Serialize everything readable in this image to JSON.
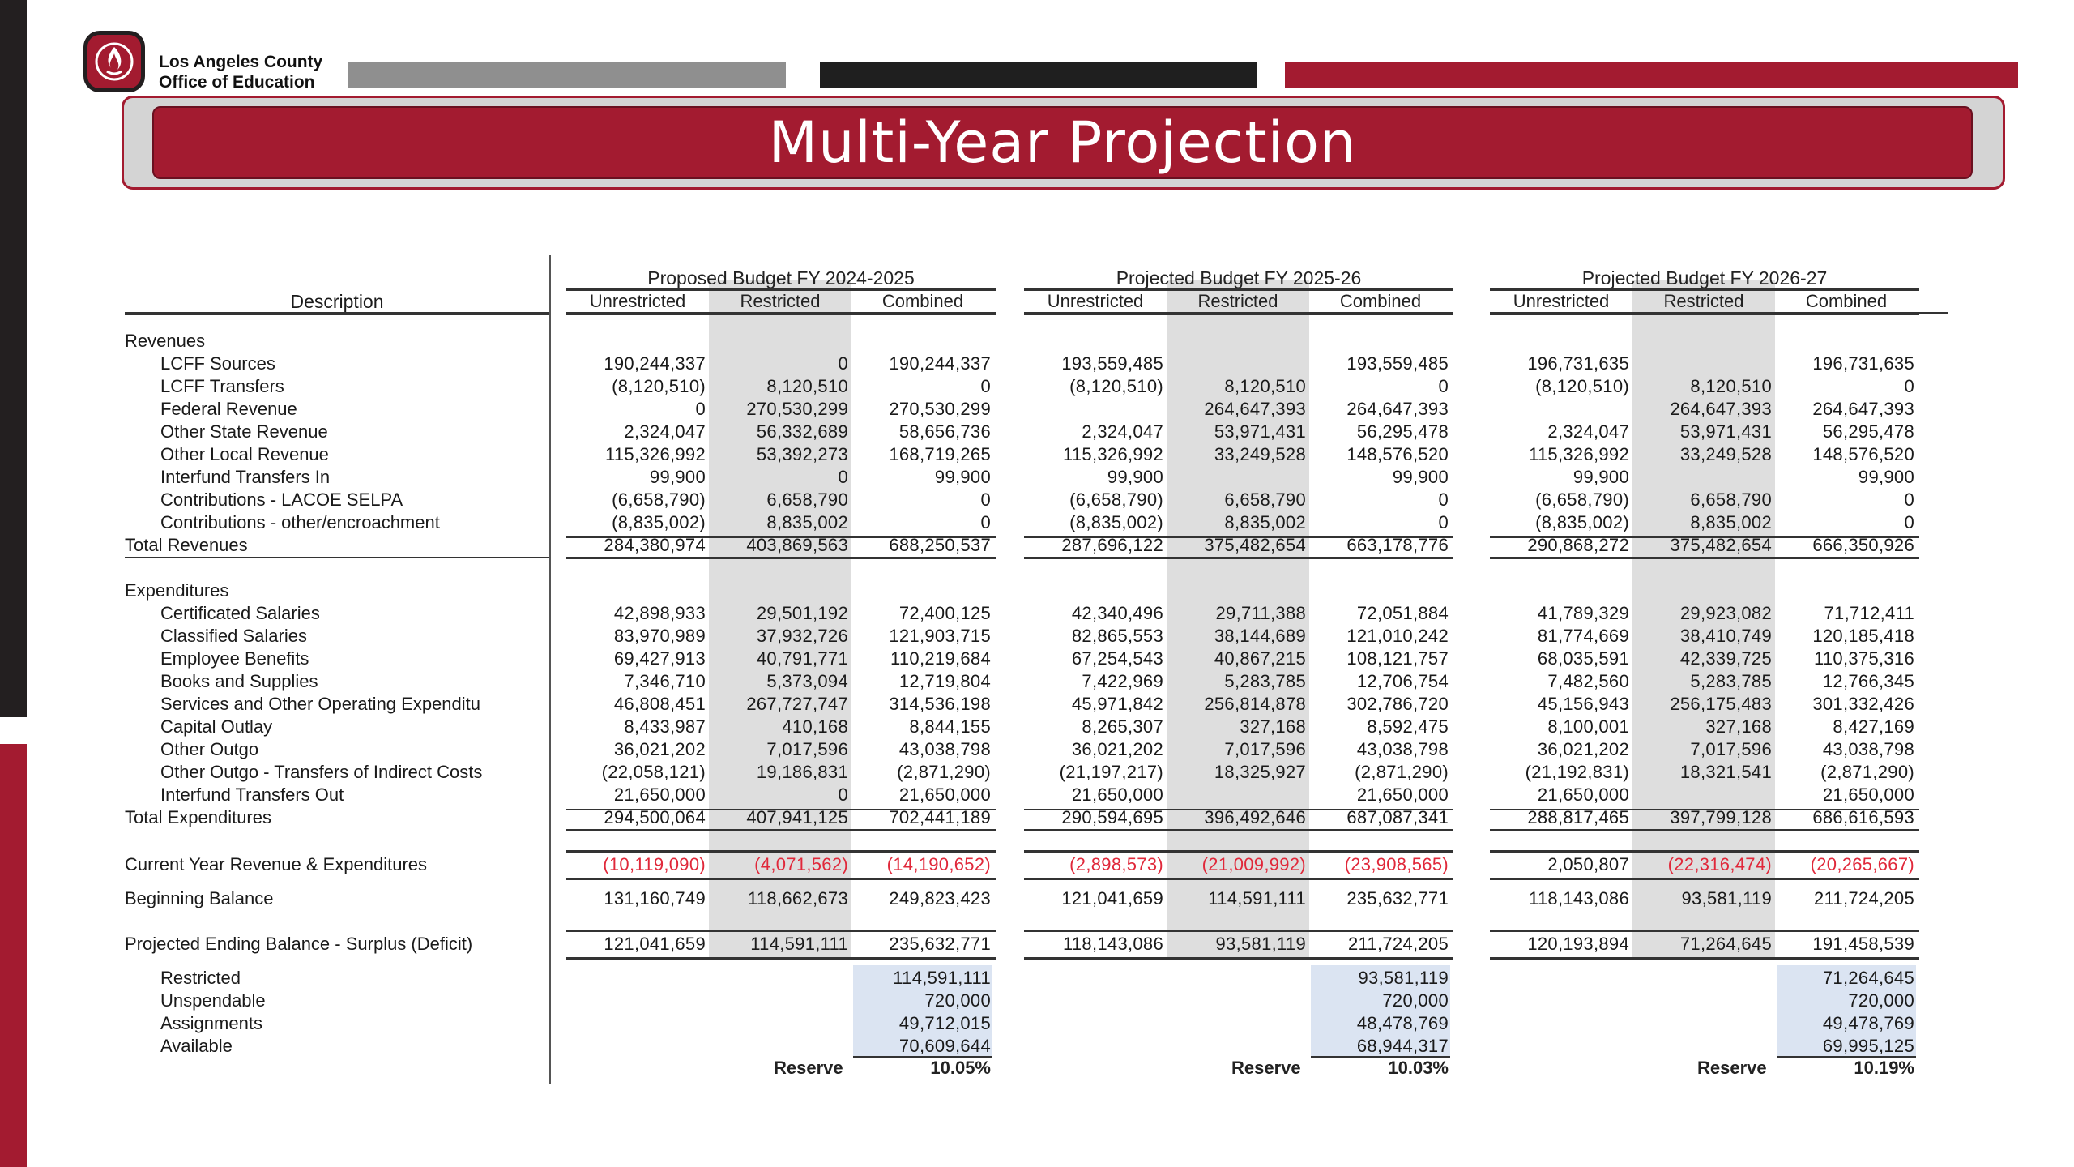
{
  "org": {
    "name_line1": "Los Angeles County",
    "name_line2": "Office of Education",
    "logo_icon": "lacoe-flame-logo"
  },
  "banner": {
    "title": "Multi-Year Projection"
  },
  "table": {
    "description_header": "Description",
    "groups": [
      {
        "title": "Proposed Budget FY 2024-2025"
      },
      {
        "title": "Projected Budget FY 2025-26"
      },
      {
        "title": "Projected Budget FY 2026-27"
      }
    ],
    "columns": [
      "Unrestricted",
      "Restricted",
      "Combined"
    ],
    "rows": [
      {
        "label": "Revenues",
        "indent": 0,
        "section": true,
        "values": [
          "",
          "",
          "",
          "",
          "",
          "",
          "",
          "",
          ""
        ]
      },
      {
        "label": "LCFF Sources",
        "indent": 1,
        "values": [
          "190,244,337",
          "0",
          "190,244,337",
          "193,559,485",
          "",
          "193,559,485",
          "196,731,635",
          "",
          "196,731,635"
        ]
      },
      {
        "label": "LCFF Transfers",
        "indent": 1,
        "values": [
          "(8,120,510)",
          "8,120,510",
          "0",
          "(8,120,510)",
          "8,120,510",
          "0",
          "(8,120,510)",
          "8,120,510",
          "0"
        ]
      },
      {
        "label": "Federal Revenue",
        "indent": 1,
        "values": [
          "0",
          "270,530,299",
          "270,530,299",
          "",
          "264,647,393",
          "264,647,393",
          "",
          "264,647,393",
          "264,647,393"
        ]
      },
      {
        "label": "Other State Revenue",
        "indent": 1,
        "values": [
          "2,324,047",
          "56,332,689",
          "58,656,736",
          "2,324,047",
          "53,971,431",
          "56,295,478",
          "2,324,047",
          "53,971,431",
          "56,295,478"
        ]
      },
      {
        "label": "Other Local Revenue",
        "indent": 1,
        "values": [
          "115,326,992",
          "53,392,273",
          "168,719,265",
          "115,326,992",
          "33,249,528",
          "148,576,520",
          "115,326,992",
          "33,249,528",
          "148,576,520"
        ]
      },
      {
        "label": "Interfund Transfers In",
        "indent": 1,
        "values": [
          "99,900",
          "0",
          "99,900",
          "99,900",
          "",
          "99,900",
          "99,900",
          "",
          "99,900"
        ]
      },
      {
        "label": "Contributions - LACOE SELPA",
        "indent": 1,
        "values": [
          "(6,658,790)",
          "6,658,790",
          "0",
          "(6,658,790)",
          "6,658,790",
          "0",
          "(6,658,790)",
          "6,658,790",
          "0"
        ]
      },
      {
        "label": "Contributions - other/encroachment",
        "indent": 1,
        "values": [
          "(8,835,002)",
          "8,835,002",
          "0",
          "(8,835,002)",
          "8,835,002",
          "0",
          "(8,835,002)",
          "8,835,002",
          "0"
        ]
      },
      {
        "label": "Total Revenues",
        "indent": 0,
        "total": true,
        "values": [
          "284,380,974",
          "403,869,563",
          "688,250,537",
          "287,696,122",
          "375,482,654",
          "663,178,776",
          "290,868,272",
          "375,482,654",
          "666,350,926"
        ]
      },
      {
        "label": "Expenditures",
        "indent": 0,
        "section": true,
        "values": [
          "",
          "",
          "",
          "",
          "",
          "",
          "",
          "",
          ""
        ]
      },
      {
        "label": "Certificated Salaries",
        "indent": 1,
        "values": [
          "42,898,933",
          "29,501,192",
          "72,400,125",
          "42,340,496",
          "29,711,388",
          "72,051,884",
          "41,789,329",
          "29,923,082",
          "71,712,411"
        ]
      },
      {
        "label": "Classified Salaries",
        "indent": 1,
        "values": [
          "83,970,989",
          "37,932,726",
          "121,903,715",
          "82,865,553",
          "38,144,689",
          "121,010,242",
          "81,774,669",
          "38,410,749",
          "120,185,418"
        ]
      },
      {
        "label": "Employee Benefits",
        "indent": 1,
        "values": [
          "69,427,913",
          "40,791,771",
          "110,219,684",
          "67,254,543",
          "40,867,215",
          "108,121,757",
          "68,035,591",
          "42,339,725",
          "110,375,316"
        ]
      },
      {
        "label": "Books and Supplies",
        "indent": 1,
        "values": [
          "7,346,710",
          "5,373,094",
          "12,719,804",
          "7,422,969",
          "5,283,785",
          "12,706,754",
          "7,482,560",
          "5,283,785",
          "12,766,345"
        ]
      },
      {
        "label": "Services and Other Operating Expenditu",
        "indent": 1,
        "values": [
          "46,808,451",
          "267,727,747",
          "314,536,198",
          "45,971,842",
          "256,814,878",
          "302,786,720",
          "45,156,943",
          "256,175,483",
          "301,332,426"
        ]
      },
      {
        "label": "Capital Outlay",
        "indent": 1,
        "values": [
          "8,433,987",
          "410,168",
          "8,844,155",
          "8,265,307",
          "327,168",
          "8,592,475",
          "8,100,001",
          "327,168",
          "8,427,169"
        ]
      },
      {
        "label": "Other Outgo",
        "indent": 1,
        "values": [
          "36,021,202",
          "7,017,596",
          "43,038,798",
          "36,021,202",
          "7,017,596",
          "43,038,798",
          "36,021,202",
          "7,017,596",
          "43,038,798"
        ]
      },
      {
        "label": "Other Outgo - Transfers of Indirect Costs",
        "indent": 1,
        "values": [
          "(22,058,121)",
          "19,186,831",
          "(2,871,290)",
          "(21,197,217)",
          "18,325,927",
          "(2,871,290)",
          "(21,192,831)",
          "18,321,541",
          "(2,871,290)"
        ]
      },
      {
        "label": "Interfund Transfers Out",
        "indent": 1,
        "values": [
          "21,650,000",
          "0",
          "21,650,000",
          "21,650,000",
          "",
          "21,650,000",
          "21,650,000",
          "",
          "21,650,000"
        ]
      },
      {
        "label": "Total Expenditures",
        "indent": 0,
        "total": true,
        "values": [
          "294,500,064",
          "407,941,125",
          "702,441,189",
          "290,594,695",
          "396,492,646",
          "687,087,341",
          "288,817,465",
          "397,799,128",
          "686,616,593"
        ]
      },
      {
        "label": "Current Year Revenue & Expenditures",
        "indent": 0,
        "values": [
          "(10,119,090)",
          "(4,071,562)",
          "(14,190,652)",
          "(2,898,573)",
          "(21,009,992)",
          "(23,908,565)",
          "2,050,807",
          "(22,316,474)",
          "(20,265,667)"
        ],
        "neg_red": [
          true,
          true,
          true,
          true,
          true,
          true,
          false,
          true,
          true
        ]
      },
      {
        "label": "Beginning Balance",
        "indent": 0,
        "values": [
          "131,160,749",
          "118,662,673",
          "249,823,423",
          "121,041,659",
          "114,591,111",
          "235,632,771",
          "118,143,086",
          "93,581,119",
          "211,724,205"
        ]
      },
      {
        "label": "Projected Ending Balance - Surplus (Deficit)",
        "indent": 0,
        "values": [
          "121,041,659",
          "114,591,111",
          "235,632,771",
          "118,143,086",
          "93,581,119",
          "211,724,205",
          "120,193,894",
          "71,264,645",
          "191,458,539"
        ]
      },
      {
        "label": "Restricted",
        "indent": 1,
        "values": [
          "",
          "",
          "114,591,111",
          "",
          "",
          "93,581,119",
          "",
          "",
          "71,264,645"
        ]
      },
      {
        "label": "Unspendable",
        "indent": 1,
        "values": [
          "",
          "",
          "720,000",
          "",
          "",
          "720,000",
          "",
          "",
          "720,000"
        ]
      },
      {
        "label": "Assignments",
        "indent": 1,
        "values": [
          "",
          "",
          "49,712,015",
          "",
          "",
          "48,478,769",
          "",
          "",
          "49,478,769"
        ]
      },
      {
        "label": "Available",
        "indent": 1,
        "values": [
          "",
          "",
          "70,609,644",
          "",
          "",
          "68,944,317",
          "",
          "",
          "69,995,125"
        ]
      }
    ],
    "reserve": {
      "label": "Reserve",
      "values": [
        "10.05%",
        "10.03%",
        "10.19%"
      ]
    }
  }
}
